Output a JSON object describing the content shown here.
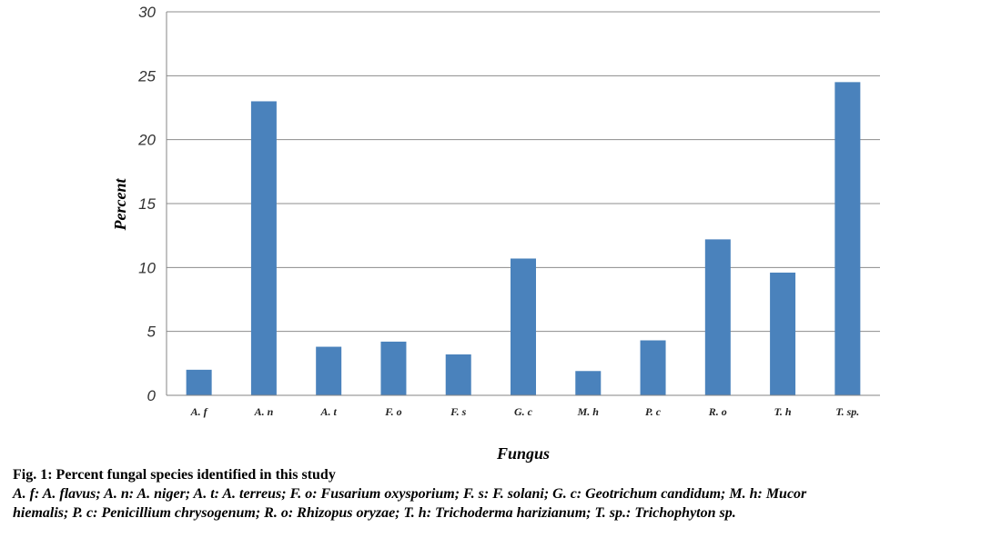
{
  "chart_data": {
    "type": "bar",
    "categories": [
      "A. f",
      "A. n",
      "A. t",
      "F. o",
      "F. s",
      "G. c",
      "M. h",
      "P. c",
      "R. o",
      "T. h",
      "T. sp."
    ],
    "values": [
      2.0,
      23.0,
      3.8,
      4.2,
      3.2,
      10.7,
      1.9,
      4.3,
      12.2,
      9.6,
      24.5
    ],
    "xlabel": "Fungus",
    "ylabel": "Percent",
    "ylim": [
      0,
      30
    ],
    "yticks": [
      "0",
      "5",
      "10",
      "15",
      "20",
      "25",
      "30"
    ],
    "grid": true,
    "bar_color": "#4a82bc"
  },
  "caption": {
    "title": "Fig. 1: Percent fungal species identified in this study",
    "legend_line1": "A. f: A. flavus; A. n: A. niger; A. t: A. terreus; F. o: Fusarium oxysporium; F. s: F. solani; G. c: Geotrichum candidum; M. h: Mucor",
    "legend_line2": "hiemalis; P. c: Penicillium chrysogenum; R. o: Rhizopus oryzae; T. h: Trichoderma harizianum; T. sp.: Trichophyton sp."
  }
}
